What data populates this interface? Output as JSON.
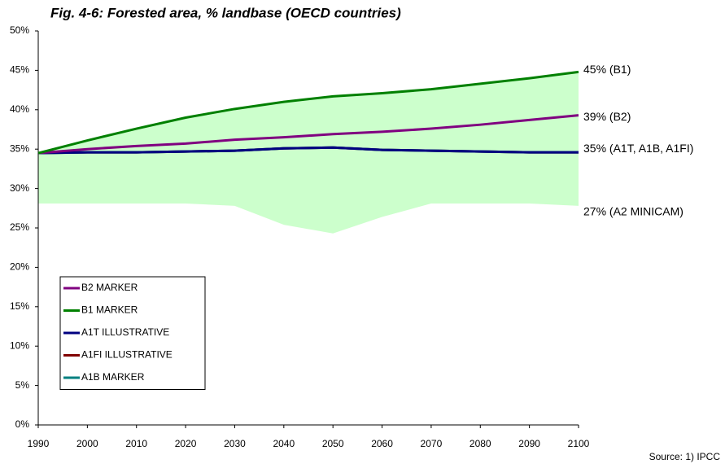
{
  "chart_data": {
    "type": "line",
    "title": "Fig. 4-6: Forested area, % landbase (OECD countries)",
    "x": [
      1990,
      2000,
      2010,
      2020,
      2030,
      2040,
      2050,
      2060,
      2070,
      2080,
      2090,
      2100
    ],
    "xlim": [
      1990,
      2100
    ],
    "xticks": [
      1990,
      2000,
      2010,
      2020,
      2030,
      2040,
      2050,
      2060,
      2070,
      2080,
      2090,
      2100
    ],
    "ylim": [
      0,
      50
    ],
    "yticks": [
      {
        "value": 0,
        "label": "0%"
      },
      {
        "value": 5,
        "label": "5%"
      },
      {
        "value": 10,
        "label": "10%"
      },
      {
        "value": 15,
        "label": "15%"
      },
      {
        "value": 20,
        "label": "20%"
      },
      {
        "value": 25,
        "label": "25%"
      },
      {
        "value": 30,
        "label": "30%"
      },
      {
        "value": 35,
        "label": "35%"
      },
      {
        "value": 40,
        "label": "40%"
      },
      {
        "value": 45,
        "label": "45%"
      },
      {
        "value": 50,
        "label": "50%"
      }
    ],
    "range": {
      "color": "#ccffcc",
      "low": [
        28.1,
        28.1,
        28.1,
        28.1,
        27.8,
        25.4,
        24.3,
        26.4,
        28.1,
        28.1,
        28.1,
        27.8
      ],
      "high": [
        34.5,
        36.1,
        37.6,
        39.0,
        40.1,
        41.0,
        41.7,
        42.1,
        42.6,
        43.3,
        44.0,
        44.8
      ]
    },
    "series": [
      {
        "name": "B2 MARKER",
        "color": "#800080",
        "values": [
          34.5,
          35.0,
          35.4,
          35.7,
          36.2,
          36.5,
          36.9,
          37.2,
          37.6,
          38.1,
          38.7,
          39.3
        ]
      },
      {
        "name": "B1 MARKER",
        "color": "#008000",
        "values": [
          34.5,
          36.1,
          37.6,
          39.0,
          40.1,
          41.0,
          41.7,
          42.1,
          42.6,
          43.3,
          44.0,
          44.8
        ]
      },
      {
        "name": "A1T ILLUSTRATIVE",
        "color": "#000080",
        "values": [
          34.5,
          34.6,
          34.6,
          34.7,
          34.8,
          35.1,
          35.2,
          34.9,
          34.8,
          34.7,
          34.6,
          34.6
        ]
      },
      {
        "name": "A1FI ILLUSTRATIVE",
        "color": "#800000",
        "values": [
          34.5,
          34.6,
          34.6,
          34.7,
          34.8,
          35.1,
          35.2,
          34.9,
          34.8,
          34.7,
          34.6,
          34.6
        ]
      },
      {
        "name": "A1B MARKER",
        "color": "#008080",
        "values": [
          34.5,
          34.6,
          34.6,
          34.7,
          34.8,
          35.1,
          35.2,
          34.9,
          34.8,
          34.7,
          34.6,
          34.6
        ]
      }
    ],
    "annotations": [
      {
        "text": "45% (B1)",
        "value": 45
      },
      {
        "text": "39% (B2)",
        "value": 39
      },
      {
        "text": "35% (A1T, A1B, A1FI)",
        "value": 35
      },
      {
        "text": "27% (A2 MINICAM)",
        "value": 27
      }
    ],
    "source": "Source: 1) IPCC"
  }
}
